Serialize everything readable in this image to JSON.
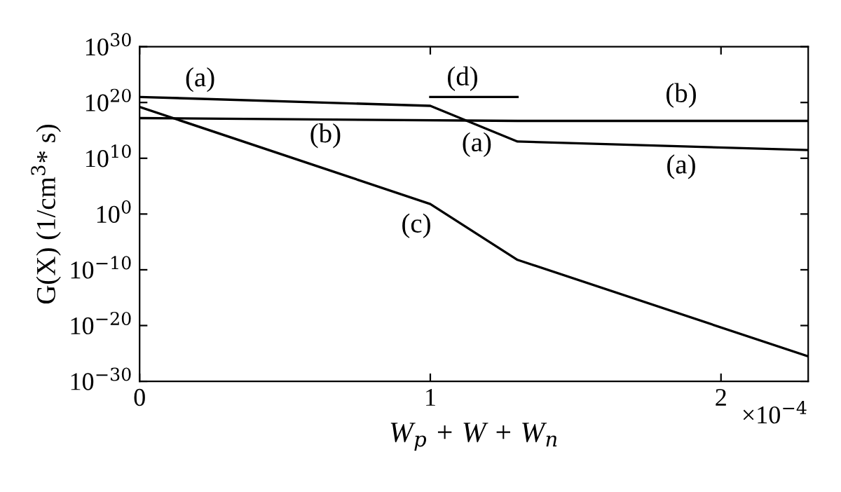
{
  "chart_data": {
    "type": "line",
    "xlabel": "W$_{p}$ + W + W$_{n}$",
    "ylabel": "G(X) (1/cm$^{3}$* s)",
    "log": "y",
    "xlim": [
      0,
      2.3
    ],
    "xticks": [
      0,
      1,
      2
    ],
    "ylim": [
      1e-30,
      1e+30
    ],
    "yticks": [
      {
        "value": 1e-30,
        "label": "10$^{−30}$"
      },
      {
        "value": 1e-20,
        "label": "10$^{−20}$"
      },
      {
        "value": 1e-10,
        "label": "10$^{−10}$"
      },
      {
        "value": 1,
        "label": "10$^{0}$"
      },
      {
        "value": 10000000000.0,
        "label": "10$^{10}$"
      },
      {
        "value": 1e+20,
        "label": "10$^{20}$"
      },
      {
        "value": 1e+30,
        "label": "10$^{30}$"
      }
    ],
    "grid": false,
    "legend": false,
    "marker": "none",
    "line_style": "solid",
    "series": [
      {
        "color": "#000000",
        "x": [
          0,
          1,
          1.3,
          2.3
        ],
        "values": [
          1e+21,
          2.5e+19,
          10000000000000.0,
          300000000000.0
        ]
      },
      {
        "color": "#000000",
        "x": [
          0,
          1.3,
          2.3
        ],
        "values": [
          1.6e+17,
          5e+16,
          5e+16
        ]
      },
      {
        "color": "#000000",
        "x": [
          0,
          1,
          1.3,
          2.3
        ],
        "values": [
          1.6e+19,
          63,
          6e-09,
          3e-26
        ]
      },
      {
        "color": "#000000",
        "x": [
          1,
          1.3
        ],
        "values": [
          1e+21,
          1e+21
        ]
      }
    ],
    "annotations": [
      "(a)",
      "(b)",
      "(d)",
      "(a)",
      "(b)",
      "(a)",
      "(c)",
      "×10$^{−4}$"
    ]
  }
}
